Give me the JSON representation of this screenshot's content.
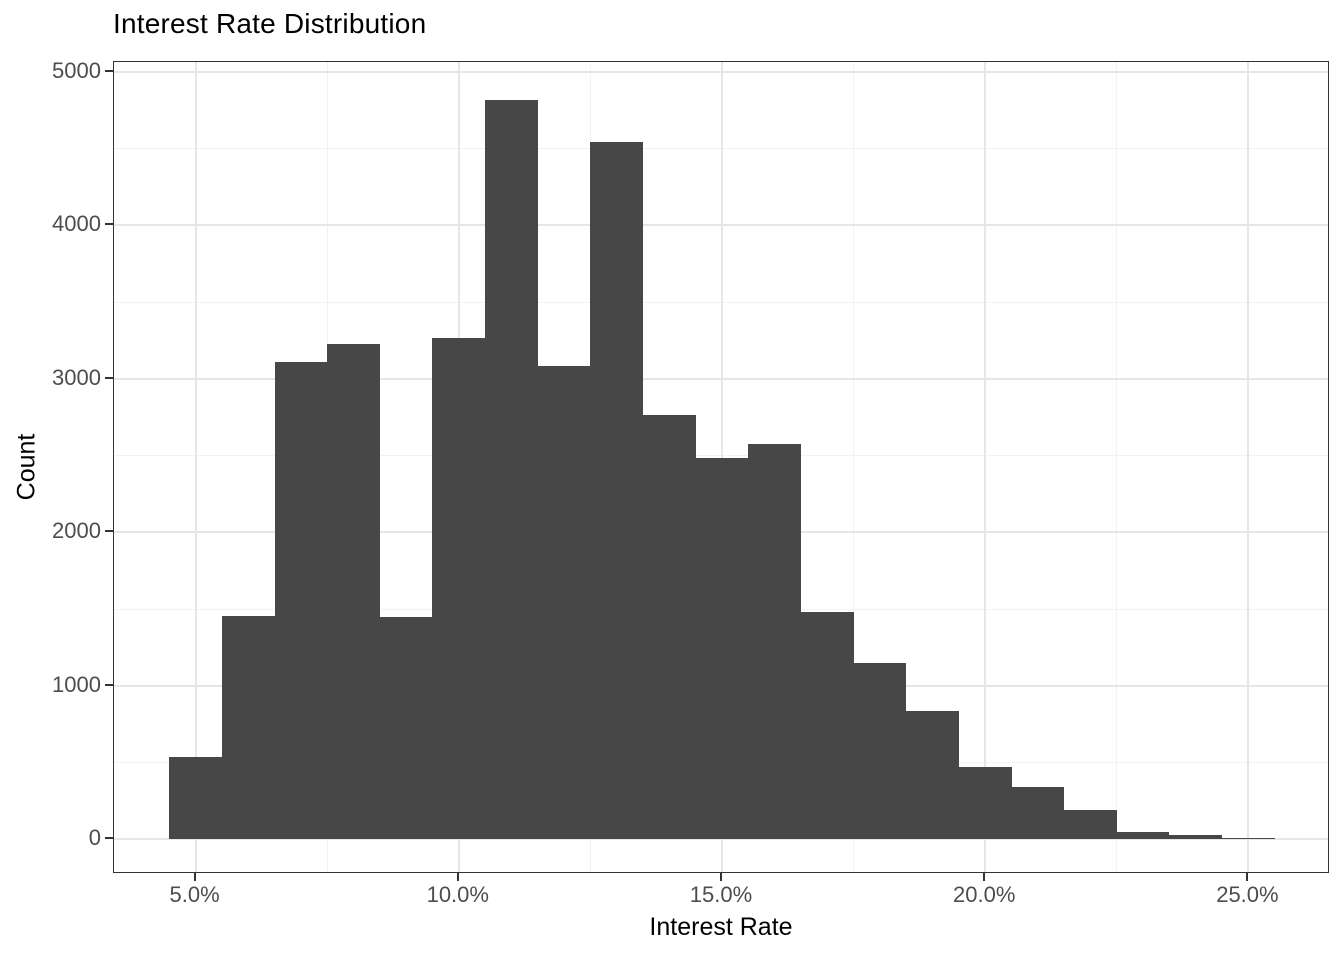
{
  "chart_data": {
    "type": "bar",
    "subtype": "histogram",
    "title": "Interest Rate Distribution",
    "xlabel": "Interest Rate",
    "ylabel": "Count",
    "bin_width_percent": 1.0,
    "bin_centers_percent": [
      5,
      6,
      7,
      8,
      9,
      10,
      11,
      12,
      13,
      14,
      15,
      16,
      17,
      18,
      19,
      20,
      21,
      22,
      23,
      24,
      25
    ],
    "counts": [
      540,
      1455,
      3110,
      3230,
      1450,
      3265,
      4820,
      3085,
      4545,
      2765,
      2485,
      2575,
      1480,
      1150,
      840,
      475,
      340,
      190,
      50,
      30,
      10
    ],
    "x_ticks": {
      "values": [
        5,
        10,
        15,
        20,
        25
      ],
      "labels": [
        "5.0%",
        "10.0%",
        "15.0%",
        "20.0%",
        "25.0%"
      ]
    },
    "x_minor_ticks": [
      7.5,
      12.5,
      17.5,
      22.5
    ],
    "y_ticks": {
      "values": [
        0,
        1000,
        2000,
        3000,
        4000,
        5000
      ],
      "labels": [
        "0",
        "1000",
        "2000",
        "3000",
        "4000",
        "5000"
      ]
    },
    "y_minor_ticks": [
      500,
      1500,
      2500,
      3500,
      4500
    ],
    "xlim_percent": [
      3.45,
      26.55
    ],
    "ylim": [
      -225,
      5065
    ],
    "grid": "major+minor",
    "legend": "none"
  },
  "colors": {
    "bar_fill": "#474747",
    "panel_border": "#333333",
    "grid_major": "#e6e6e6",
    "grid_minor": "#f2f2f2",
    "tick_mark": "#333333",
    "tick_label": "#4d4d4d",
    "title_text": "#000000",
    "axis_title_text": "#000000",
    "background": "#ffffff"
  }
}
